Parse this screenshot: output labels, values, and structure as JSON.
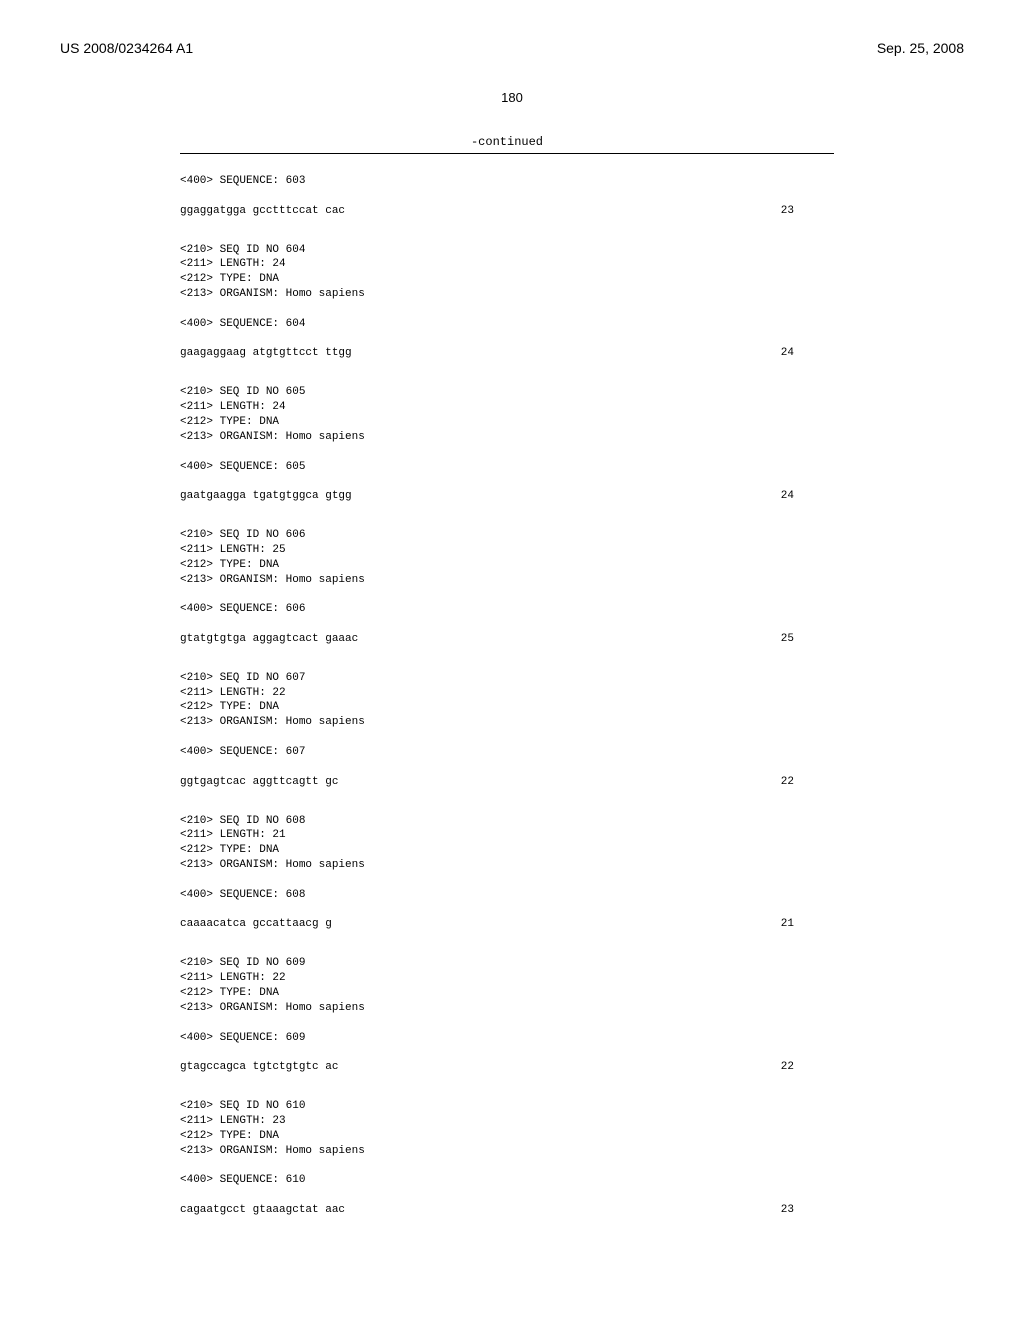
{
  "header": {
    "left": "US 2008/0234264 A1",
    "right": "Sep. 25, 2008"
  },
  "page_number": "180",
  "continued_label": "-continued",
  "sequences": [
    {
      "intro_lines": [
        "<400> SEQUENCE: 603"
      ],
      "data": "ggaggatgga gcctttccat cac",
      "length": "23"
    },
    {
      "intro_lines": [
        "<210> SEQ ID NO 604",
        "<211> LENGTH: 24",
        "<212> TYPE: DNA",
        "<213> ORGANISM: Homo sapiens",
        "",
        "<400> SEQUENCE: 604"
      ],
      "data": "gaagaggaag atgtgttcct ttgg",
      "length": "24"
    },
    {
      "intro_lines": [
        "<210> SEQ ID NO 605",
        "<211> LENGTH: 24",
        "<212> TYPE: DNA",
        "<213> ORGANISM: Homo sapiens",
        "",
        "<400> SEQUENCE: 605"
      ],
      "data": "gaatgaagga tgatgtggca gtgg",
      "length": "24"
    },
    {
      "intro_lines": [
        "<210> SEQ ID NO 606",
        "<211> LENGTH: 25",
        "<212> TYPE: DNA",
        "<213> ORGANISM: Homo sapiens",
        "",
        "<400> SEQUENCE: 606"
      ],
      "data": "gtatgtgtga aggagtcact gaaac",
      "length": "25"
    },
    {
      "intro_lines": [
        "<210> SEQ ID NO 607",
        "<211> LENGTH: 22",
        "<212> TYPE: DNA",
        "<213> ORGANISM: Homo sapiens",
        "",
        "<400> SEQUENCE: 607"
      ],
      "data": "ggtgagtcac aggttcagtt gc",
      "length": "22"
    },
    {
      "intro_lines": [
        "<210> SEQ ID NO 608",
        "<211> LENGTH: 21",
        "<212> TYPE: DNA",
        "<213> ORGANISM: Homo sapiens",
        "",
        "<400> SEQUENCE: 608"
      ],
      "data": "caaaacatca gccattaacg g",
      "length": "21"
    },
    {
      "intro_lines": [
        "<210> SEQ ID NO 609",
        "<211> LENGTH: 22",
        "<212> TYPE: DNA",
        "<213> ORGANISM: Homo sapiens",
        "",
        "<400> SEQUENCE: 609"
      ],
      "data": "gtagccagca tgtctgtgtc ac",
      "length": "22"
    },
    {
      "intro_lines": [
        "<210> SEQ ID NO 610",
        "<211> LENGTH: 23",
        "<212> TYPE: DNA",
        "<213> ORGANISM: Homo sapiens",
        "",
        "<400> SEQUENCE: 610"
      ],
      "data": "cagaatgcct gtaaagctat aac",
      "length": "23"
    }
  ]
}
